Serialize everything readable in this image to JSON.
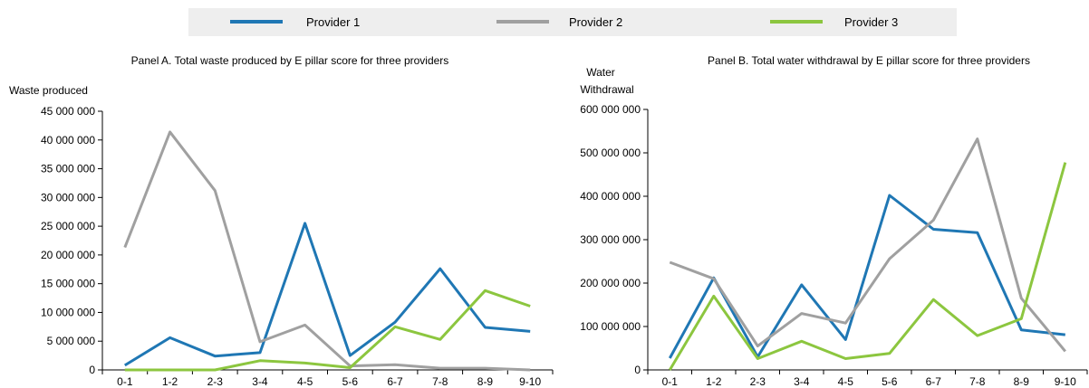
{
  "legend": {
    "items": [
      {
        "label": "Provider 1",
        "color": "#1f77b4"
      },
      {
        "label": "Provider 2",
        "color": "#a0a0a0"
      },
      {
        "label": "Provider 3",
        "color": "#8cc63f"
      }
    ]
  },
  "chart_data": [
    {
      "type": "line",
      "title": "Panel A. Total waste produced by E pillar score for three providers",
      "ylabel": "Waste produced",
      "xlabel": "",
      "categories": [
        "0-1",
        "1-2",
        "2-3",
        "3-4",
        "4-5",
        "5-6",
        "6-7",
        "7-8",
        "8-9",
        "9-10"
      ],
      "ylim": [
        0,
        45000000
      ],
      "yticks": [
        0,
        5000000,
        10000000,
        15000000,
        20000000,
        25000000,
        30000000,
        35000000,
        40000000,
        45000000
      ],
      "ytick_labels": [
        "0",
        "5 000 000",
        "10 000 000",
        "15 000 000",
        "20 000 000",
        "25 000 000",
        "30 000 000",
        "35 000 000",
        "40 000 000",
        "45 000 000"
      ],
      "grid": false,
      "series": [
        {
          "name": "Provider 1",
          "color": "#1f77b4",
          "values": [
            800000,
            5600000,
            2400000,
            3000000,
            25500000,
            2500000,
            8300000,
            17600000,
            7400000,
            6700000
          ]
        },
        {
          "name": "Provider 2",
          "color": "#a0a0a0",
          "values": [
            21300000,
            41400000,
            31200000,
            4900000,
            7800000,
            700000,
            900000,
            300000,
            300000,
            0
          ]
        },
        {
          "name": "Provider 3",
          "color": "#8cc63f",
          "values": [
            0,
            0,
            0,
            1600000,
            1200000,
            400000,
            7500000,
            5300000,
            13800000,
            11100000
          ]
        }
      ]
    },
    {
      "type": "line",
      "title": "Panel B. Total water withdrawal by E pillar score for three providers",
      "ylabel": "Water Withdrawal",
      "ylabel_lines": [
        "Water",
        "Withdrawal"
      ],
      "xlabel": "",
      "categories": [
        "0-1",
        "1-2",
        "2-3",
        "3-4",
        "4-5",
        "5-6",
        "6-7",
        "7-8",
        "8-9",
        "9-10"
      ],
      "ylim": [
        0,
        600000000
      ],
      "yticks": [
        0,
        100000000,
        200000000,
        300000000,
        400000000,
        500000000,
        600000000
      ],
      "ytick_labels": [
        "0",
        "100 000 000",
        "200 000 000",
        "300 000 000",
        "400 000 000",
        "500 000 000",
        "600 000 000"
      ],
      "grid": false,
      "series": [
        {
          "name": "Provider 1",
          "color": "#1f77b4",
          "values": [
            27000000,
            212000000,
            30000000,
            196000000,
            70000000,
            402000000,
            324000000,
            316000000,
            92000000,
            81000000
          ]
        },
        {
          "name": "Provider 2",
          "color": "#a0a0a0",
          "values": [
            248000000,
            210000000,
            55000000,
            130000000,
            108000000,
            256000000,
            345000000,
            532000000,
            165000000,
            43000000
          ]
        },
        {
          "name": "Provider 3",
          "color": "#8cc63f",
          "values": [
            0,
            170000000,
            26000000,
            66000000,
            26000000,
            38000000,
            162000000,
            79000000,
            118000000,
            478000000
          ]
        }
      ]
    }
  ]
}
